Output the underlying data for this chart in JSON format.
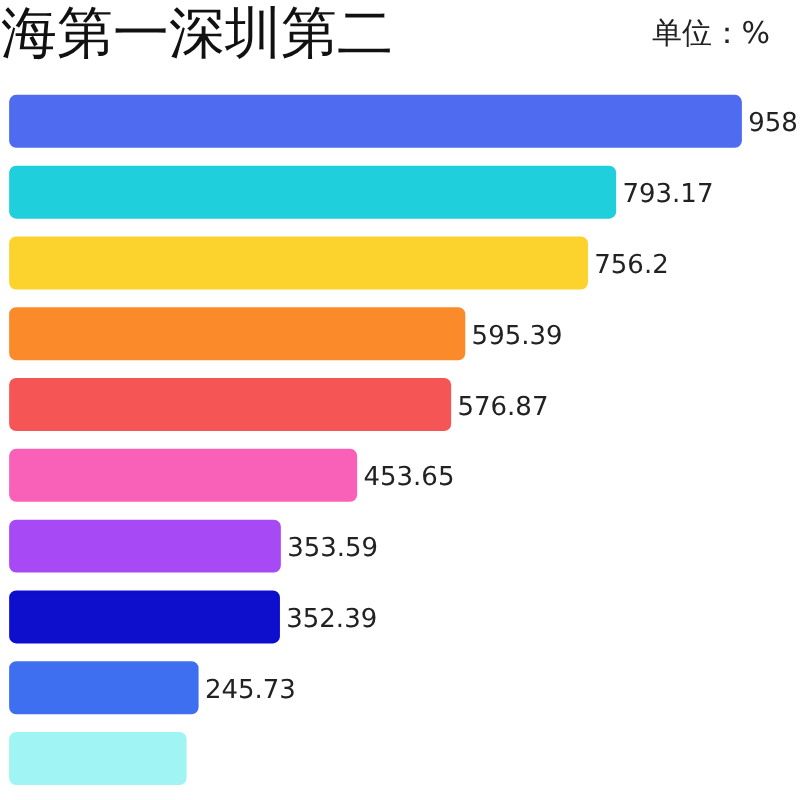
{
  "chart_data": {
    "type": "bar",
    "orientation": "horizontal",
    "title": "海第一深圳第二",
    "subtitle": "单位：%",
    "categories": [
      null,
      null,
      null,
      null,
      null,
      null,
      null,
      null,
      null,
      null
    ],
    "values": [
      958,
      793.17,
      756.2,
      595.39,
      576.87,
      453.65,
      353.59,
      352.39,
      245.73,
      230
    ],
    "value_labels": [
      "958",
      "793.17",
      "756.2",
      "595.39",
      "576.87",
      "453.65",
      "353.59",
      "352.39",
      "245.73",
      null
    ],
    "colors": [
      "#4f6cf0",
      "#1fd0dc",
      "#fcd22c",
      "#fb8a2a",
      "#f65556",
      "#f961b8",
      "#a749f5",
      "#0d0fcc",
      "#3e6ff0",
      "#a0f4f4"
    ],
    "grid": false
  }
}
